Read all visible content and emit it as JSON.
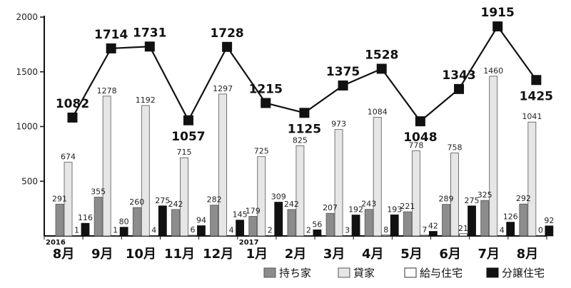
{
  "chart_data": {
    "type": "bar+line",
    "title": "",
    "xlabel": "",
    "ylabel": "",
    "ylim": [
      0,
      2000
    ],
    "yticks": [
      "500",
      "1000",
      "1500",
      "2000"
    ],
    "year_markers": [
      {
        "label": "2016",
        "index": 0
      },
      {
        "label": "2017",
        "index": 5
      }
    ],
    "categories": [
      "8月",
      "9月",
      "10月",
      "11月",
      "12月",
      "1月",
      "2月",
      "3月",
      "4月",
      "5月",
      "6月",
      "7月",
      "8月"
    ],
    "bar_series": [
      {
        "name": "持ち家",
        "color": "#8c8c8c",
        "stroke": "#555555",
        "values": [
          291,
          355,
          260,
          242,
          282,
          179,
          242,
          207,
          243,
          221,
          289,
          325,
          292
        ]
      },
      {
        "name": "貸家",
        "color": "#e6e6e6",
        "stroke": "#555555",
        "values": [
          674,
          1278,
          1192,
          715,
          1297,
          725,
          825,
          973,
          1084,
          778,
          758,
          1460,
          1041
        ]
      },
      {
        "name": "給与住宅",
        "color": "#ffffff",
        "stroke": "#333333",
        "values": [
          1,
          1,
          4,
          6,
          4,
          2,
          2,
          3,
          8,
          7,
          21,
          4,
          0
        ]
      },
      {
        "name": "分譲住宅",
        "color": "#111111",
        "stroke": "#111111",
        "values": [
          116,
          80,
          275,
          94,
          145,
          309,
          56,
          192,
          193,
          42,
          275,
          126,
          92
        ]
      }
    ],
    "line_series": {
      "name": "",
      "color": "#111111",
      "values": [
        1082,
        1714,
        1731,
        1057,
        1728,
        1215,
        1125,
        1375,
        1528,
        1048,
        1343,
        1915,
        1425
      ]
    },
    "legend_position": "bottom-right"
  }
}
